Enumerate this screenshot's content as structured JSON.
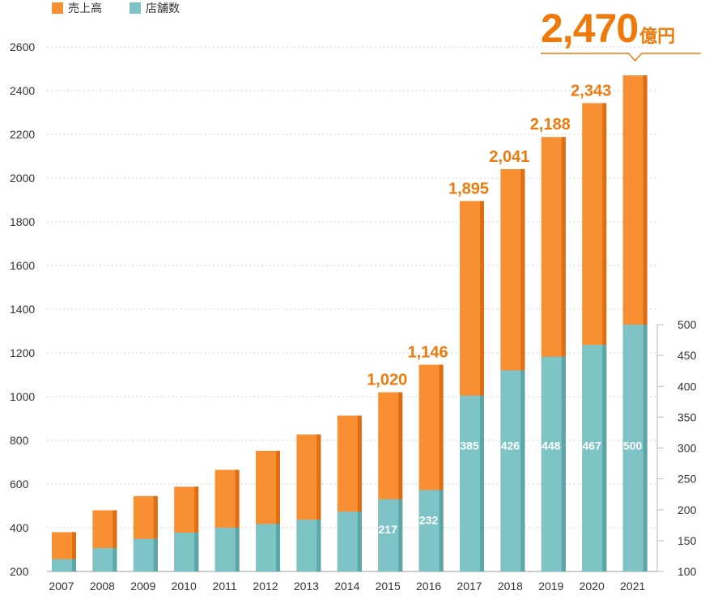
{
  "legend": {
    "sales_label": "売上高",
    "stores_label": "店舗数"
  },
  "colors": {
    "sales": "#f98f33",
    "sales_shade": "#e06e10",
    "stores": "#7ec4c7",
    "stores_shade": "#5aa7aa",
    "accent": "#ef7a0b"
  },
  "callout": {
    "value": "2,470",
    "unit": "億円"
  },
  "chart_data": {
    "type": "bar",
    "title": "",
    "categories": [
      "2007",
      "2008",
      "2009",
      "2010",
      "2011",
      "2012",
      "2013",
      "2014",
      "2015",
      "2016",
      "2017",
      "2018",
      "2019",
      "2020",
      "2021"
    ],
    "series": [
      {
        "name": "売上高",
        "axis": "left",
        "values": [
          380,
          480,
          545,
          588,
          665,
          752,
          827,
          913,
          1020,
          1146,
          1895,
          2041,
          2188,
          2343,
          2470
        ]
      },
      {
        "name": "店舗数",
        "axis": "right",
        "values": [
          120,
          138,
          153,
          163,
          171,
          177,
          184,
          197,
          217,
          232,
          385,
          426,
          448,
          467,
          500
        ]
      }
    ],
    "sales_labels": [
      "",
      "",
      "",
      "",
      "",
      "",
      "",
      "",
      "1,020",
      "1,146",
      "1,895",
      "2,041",
      "2,188",
      "2,343",
      ""
    ],
    "store_labels": [
      "",
      "",
      "",
      "",
      "",
      "",
      "",
      "",
      "217",
      "232",
      "385",
      "426",
      "448",
      "467",
      "500"
    ],
    "y_left": {
      "ylim": [
        200,
        2600
      ],
      "ticks": [
        "2600",
        "2400",
        "2200",
        "2000",
        "1800",
        "1600",
        "1400",
        "1200",
        "1000",
        "800",
        "600",
        "400",
        "200"
      ]
    },
    "y_right": {
      "ylim": [
        100,
        500
      ],
      "ticks": [
        "500",
        "450",
        "400",
        "350",
        "300",
        "250",
        "200",
        "150",
        "100"
      ]
    },
    "grid": true,
    "legend_position": "top-left"
  }
}
